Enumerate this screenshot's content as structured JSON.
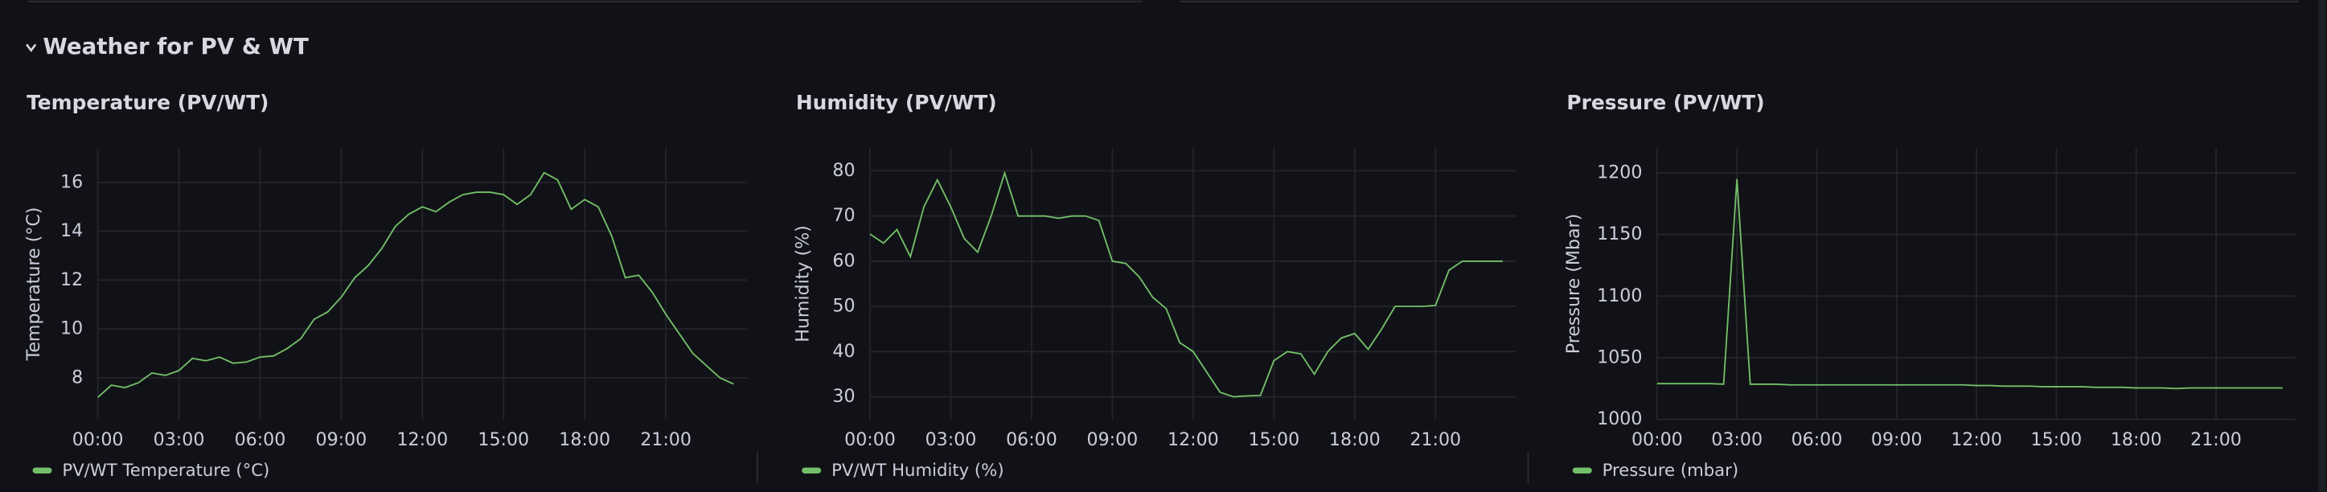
{
  "section": {
    "title": "Weather for PV & WT"
  },
  "chart_data": [
    {
      "type": "line",
      "title": "Temperature (PV/WT)",
      "ylabel": "Temperature (°C)",
      "x": [
        0,
        0.5,
        1,
        1.5,
        2,
        2.5,
        3,
        3.5,
        4,
        4.5,
        5,
        5.5,
        6,
        6.5,
        7,
        7.5,
        8,
        8.5,
        9,
        9.5,
        10,
        10.5,
        11,
        11.5,
        12,
        12.5,
        13,
        13.5,
        14,
        14.5,
        15,
        15.5,
        16,
        16.5,
        17,
        17.5,
        18,
        18.5,
        19,
        19.5,
        20,
        20.5,
        21,
        21.5,
        22,
        22.5,
        23,
        23.5
      ],
      "series": [
        {
          "name": "PV/WT Temperature (°C)",
          "color": "#73bf69",
          "values": [
            7.2,
            7.7,
            7.6,
            7.8,
            8.2,
            8.1,
            8.3,
            8.8,
            8.7,
            8.85,
            8.6,
            8.65,
            8.85,
            8.9,
            9.2,
            9.6,
            10.4,
            10.7,
            11.3,
            12.1,
            12.6,
            13.3,
            14.2,
            14.7,
            15.0,
            14.8,
            15.2,
            15.5,
            15.6,
            15.6,
            15.5,
            15.1,
            15.5,
            16.4,
            16.1,
            14.9,
            15.3,
            15.0,
            13.8,
            12.1,
            12.2,
            11.5,
            10.6,
            9.8,
            9.0,
            8.5,
            8.0,
            7.75
          ]
        }
      ],
      "xlim": [
        0,
        24
      ],
      "xticks": [
        {
          "value": 0,
          "label": "00:00"
        },
        {
          "value": 3,
          "label": "03:00"
        },
        {
          "value": 6,
          "label": "06:00"
        },
        {
          "value": 9,
          "label": "09:00"
        },
        {
          "value": 12,
          "label": "12:00"
        },
        {
          "value": 15,
          "label": "15:00"
        },
        {
          "value": 18,
          "label": "18:00"
        },
        {
          "value": 21,
          "label": "21:00"
        }
      ],
      "ylim": [
        6.3,
        17.4
      ],
      "yticks": [
        8,
        10,
        12,
        14,
        16
      ],
      "grid": true,
      "legend": "bottom"
    },
    {
      "type": "line",
      "title": "Humidity (PV/WT)",
      "ylabel": "Humidity (%)",
      "x": [
        0,
        0.5,
        1,
        1.5,
        2,
        2.5,
        3,
        3.5,
        4,
        4.5,
        5,
        5.5,
        6,
        6.5,
        7,
        7.5,
        8,
        8.5,
        9,
        9.5,
        10,
        10.5,
        11,
        11.5,
        12,
        12.5,
        13,
        13.5,
        14,
        14.5,
        15,
        15.5,
        16,
        16.5,
        17,
        17.5,
        18,
        18.5,
        19,
        19.5,
        20,
        20.5,
        21,
        21.5,
        22,
        22.5,
        23,
        23.5
      ],
      "series": [
        {
          "name": "PV/WT Humidity (%)",
          "color": "#73bf69",
          "values": [
            66,
            64,
            67,
            61,
            72,
            78,
            72,
            65,
            62,
            70,
            79.5,
            70,
            70,
            70,
            69.5,
            70,
            70,
            69,
            60,
            59.5,
            56.5,
            52,
            49.5,
            42,
            40,
            35.5,
            31,
            30,
            30.2,
            30.3,
            38,
            40,
            39.5,
            35,
            40,
            43,
            44,
            40.5,
            45,
            50,
            50,
            50,
            50.2,
            58,
            60,
            60,
            60,
            60
          ]
        }
      ],
      "xlim": [
        0,
        24
      ],
      "xticks": [
        {
          "value": 0,
          "label": "00:00"
        },
        {
          "value": 3,
          "label": "03:00"
        },
        {
          "value": 6,
          "label": "06:00"
        },
        {
          "value": 9,
          "label": "09:00"
        },
        {
          "value": 12,
          "label": "12:00"
        },
        {
          "value": 15,
          "label": "15:00"
        },
        {
          "value": 18,
          "label": "18:00"
        },
        {
          "value": 21,
          "label": "21:00"
        }
      ],
      "ylim": [
        25,
        85
      ],
      "yticks": [
        30,
        40,
        50,
        60,
        70,
        80
      ],
      "grid": true,
      "legend": "bottom"
    },
    {
      "type": "line",
      "title": "Pressure (PV/WT)",
      "ylabel": "Pressure (Mbar)",
      "x": [
        0,
        0.5,
        1,
        1.5,
        2,
        2.5,
        3,
        3.5,
        4,
        4.5,
        5,
        5.5,
        6,
        6.5,
        7,
        7.5,
        8,
        8.5,
        9,
        9.5,
        10,
        10.5,
        11,
        11.5,
        12,
        12.5,
        13,
        13.5,
        14,
        14.5,
        15,
        15.5,
        16,
        16.5,
        17,
        17.5,
        18,
        18.5,
        19,
        19.5,
        20,
        20.5,
        21,
        21.5,
        22,
        22.5,
        23,
        23.5
      ],
      "series": [
        {
          "name": "Pressure (mbar)",
          "color": "#73bf69",
          "values": [
            1029,
            1029,
            1029,
            1029,
            1029,
            1028.5,
            1195,
            1028.5,
            1028.5,
            1028.5,
            1028,
            1028,
            1028,
            1028,
            1028,
            1028,
            1028,
            1028,
            1028,
            1028,
            1028,
            1028,
            1028,
            1028,
            1027.5,
            1027.5,
            1027,
            1027,
            1027,
            1026.5,
            1026.5,
            1026.5,
            1026.5,
            1026,
            1026,
            1026,
            1025.5,
            1025.5,
            1025.5,
            1025,
            1025.5,
            1025.5,
            1025.5,
            1025.5,
            1025.5,
            1025.5,
            1025.5,
            1025.5
          ]
        }
      ],
      "xlim": [
        0,
        24
      ],
      "xticks": [
        {
          "value": 0,
          "label": "00:00"
        },
        {
          "value": 3,
          "label": "03:00"
        },
        {
          "value": 6,
          "label": "06:00"
        },
        {
          "value": 9,
          "label": "09:00"
        },
        {
          "value": 12,
          "label": "12:00"
        },
        {
          "value": 15,
          "label": "15:00"
        },
        {
          "value": 18,
          "label": "18:00"
        },
        {
          "value": 21,
          "label": "21:00"
        }
      ],
      "ylim": [
        1000,
        1220
      ],
      "yticks": [
        1000,
        1050,
        1100,
        1150,
        1200
      ],
      "grid": true,
      "legend": "bottom"
    }
  ]
}
